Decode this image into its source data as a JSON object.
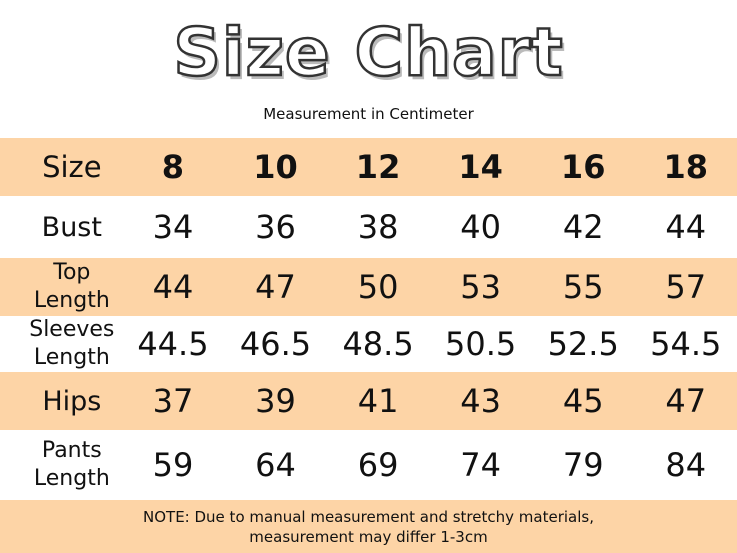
{
  "header": {
    "title": "Size Chart",
    "subtitle": "Measurement in Centimeter"
  },
  "table": {
    "columns": [
      "Size",
      "8",
      "10",
      "12",
      "14",
      "16",
      "18"
    ],
    "rows": [
      [
        "Bust",
        "34",
        "36",
        "38",
        "40",
        "42",
        "44"
      ],
      [
        "Top Length",
        "44",
        "47",
        "50",
        "53",
        "55",
        "57"
      ],
      [
        "Sleeves Length",
        "44.5",
        "46.5",
        "48.5",
        "50.5",
        "52.5",
        "54.5"
      ],
      [
        "Hips",
        "37",
        "39",
        "41",
        "43",
        "45",
        "47"
      ],
      [
        "Pants Length",
        "59",
        "64",
        "69",
        "74",
        "79",
        "84"
      ]
    ]
  },
  "note": "NOTE: Due to manual measurement and stretchy materials, measurement may differ 1-3cm"
}
